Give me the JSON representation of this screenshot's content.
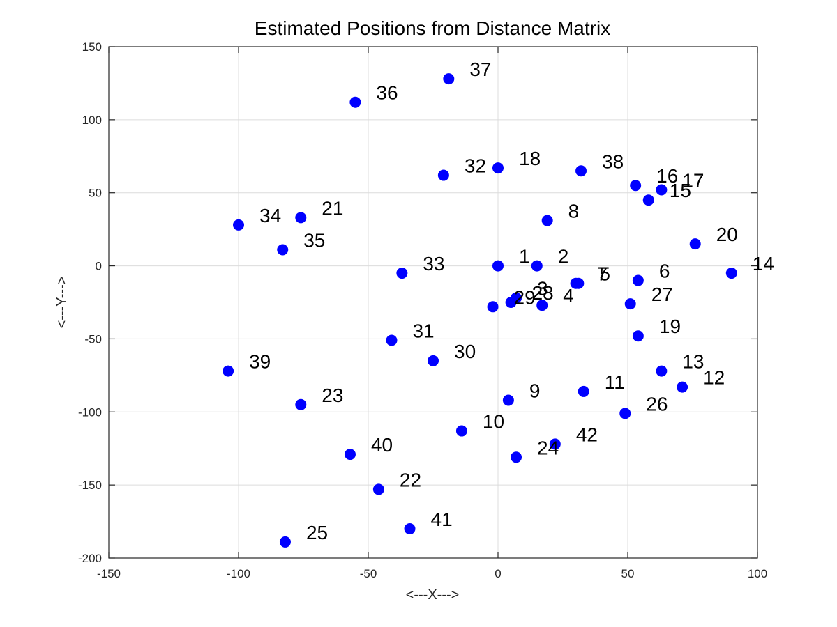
{
  "chart_data": {
    "type": "scatter",
    "title": "Estimated Positions from Distance Matrix",
    "xlabel": "<---X--->",
    "ylabel": "<---Y--->",
    "xlim": [
      -150,
      100
    ],
    "ylim": [
      -200,
      150
    ],
    "xticks": [
      -150,
      -100,
      -50,
      0,
      50,
      100
    ],
    "yticks": [
      -200,
      -150,
      -100,
      -50,
      0,
      50,
      100,
      150
    ],
    "grid": true,
    "marker_color": "#0000ff",
    "points": [
      {
        "label": "1",
        "x": 0,
        "y": 0
      },
      {
        "label": "2",
        "x": 15,
        "y": 0
      },
      {
        "label": "3",
        "x": 7,
        "y": -22
      },
      {
        "label": "4",
        "x": 17,
        "y": -27
      },
      {
        "label": "5",
        "x": 31,
        "y": -12
      },
      {
        "label": "6",
        "x": 54,
        "y": -10
      },
      {
        "label": "7",
        "x": 30,
        "y": -12
      },
      {
        "label": "8",
        "x": 19,
        "y": 31
      },
      {
        "label": "9",
        "x": 4,
        "y": -92
      },
      {
        "label": "10",
        "x": -14,
        "y": -113
      },
      {
        "label": "11",
        "x": 33,
        "y": -86
      },
      {
        "label": "12",
        "x": 71,
        "y": -83
      },
      {
        "label": "13",
        "x": 63,
        "y": -72
      },
      {
        "label": "14",
        "x": 90,
        "y": -5
      },
      {
        "label": "15",
        "x": 58,
        "y": 45
      },
      {
        "label": "16",
        "x": 53,
        "y": 55
      },
      {
        "label": "17",
        "x": 63,
        "y": 52
      },
      {
        "label": "18",
        "x": 0,
        "y": 67
      },
      {
        "label": "19",
        "x": 54,
        "y": -48
      },
      {
        "label": "20",
        "x": 76,
        "y": 15
      },
      {
        "label": "21",
        "x": -76,
        "y": 33
      },
      {
        "label": "22",
        "x": -46,
        "y": -153
      },
      {
        "label": "23",
        "x": -76,
        "y": -95
      },
      {
        "label": "24",
        "x": 7,
        "y": -131
      },
      {
        "label": "25",
        "x": -82,
        "y": -189
      },
      {
        "label": "26",
        "x": 49,
        "y": -101
      },
      {
        "label": "27",
        "x": 51,
        "y": -26
      },
      {
        "label": "28",
        "x": 5,
        "y": -25
      },
      {
        "label": "29",
        "x": -2,
        "y": -28
      },
      {
        "label": "30",
        "x": -25,
        "y": -65
      },
      {
        "label": "31",
        "x": -41,
        "y": -51
      },
      {
        "label": "32",
        "x": -21,
        "y": 62
      },
      {
        "label": "33",
        "x": -37,
        "y": -5
      },
      {
        "label": "34",
        "x": -100,
        "y": 28
      },
      {
        "label": "35",
        "x": -83,
        "y": 11
      },
      {
        "label": "36",
        "x": -55,
        "y": 112
      },
      {
        "label": "37",
        "x": -19,
        "y": 128
      },
      {
        "label": "38",
        "x": 32,
        "y": 65
      },
      {
        "label": "39",
        "x": -104,
        "y": -72
      },
      {
        "label": "40",
        "x": -57,
        "y": -129
      },
      {
        "label": "41",
        "x": -34,
        "y": -180
      },
      {
        "label": "42",
        "x": 22,
        "y": -122
      }
    ]
  }
}
